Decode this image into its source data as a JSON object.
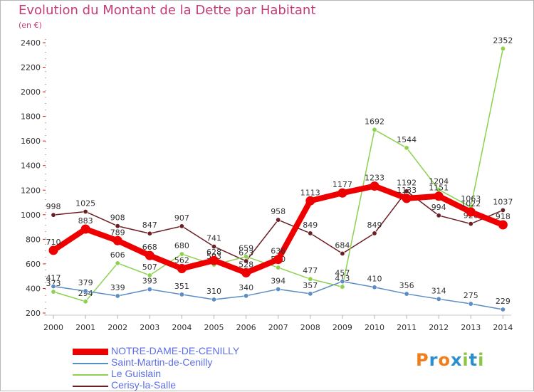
{
  "chart_title": "Evolution du Montant de la Dette par Habitant",
  "unit_label": "(en €)",
  "logo": {
    "text": "Proxiti",
    "colors": [
      "#f07d17",
      "#2a8fd0",
      "#f07d17",
      "#2a8fd0",
      "#8cc63f",
      "#2a8fd0",
      "#8cc63f"
    ]
  },
  "chart_data": {
    "type": "line",
    "title": "Evolution du Montant de la Dette par Habitant",
    "ylabel": "(en €)",
    "xlabel": "",
    "ylim": [
      200,
      2400
    ],
    "yticks": [
      200,
      400,
      600,
      800,
      1000,
      1200,
      1400,
      1600,
      1800,
      2000,
      2200,
      2400
    ],
    "grid": false,
    "legend_position": "bottom-left",
    "categories": [
      "2000",
      "2001",
      "2002",
      "2003",
      "2004",
      "2005",
      "2006",
      "2007",
      "2008",
      "2009",
      "2010",
      "2011",
      "2012",
      "2013",
      "2014"
    ],
    "series": [
      {
        "name": "Cerisy-la-Salle",
        "color": "#6b1e23",
        "values": [
          998,
          1025,
          908,
          847,
          907,
          741,
          623,
          958,
          849,
          684,
          849,
          1192,
          994,
          926,
          1037
        ]
      },
      {
        "name": "Le Guislain",
        "color": "#8cd24e",
        "values": [
          373,
          294,
          606,
          507,
          680,
          593,
          659,
          570,
          477,
          413,
          1692,
          1544,
          1204,
          1063,
          2352
        ]
      },
      {
        "name": "Saint-Martin-de-Cenilly",
        "color": "#5b8dc5",
        "values": [
          417,
          379,
          339,
          393,
          351,
          310,
          340,
          394,
          357,
          457,
          410,
          356,
          314,
          275,
          229
        ]
      },
      {
        "name": "NOTRE-DAME-DE-CENILLY",
        "color": "#ee0000",
        "values": [
          710,
          883,
          789,
          668,
          562,
          628,
          528,
          636,
          1113,
          1177,
          1233,
          1133,
          1151,
          1022,
          918
        ]
      }
    ]
  }
}
